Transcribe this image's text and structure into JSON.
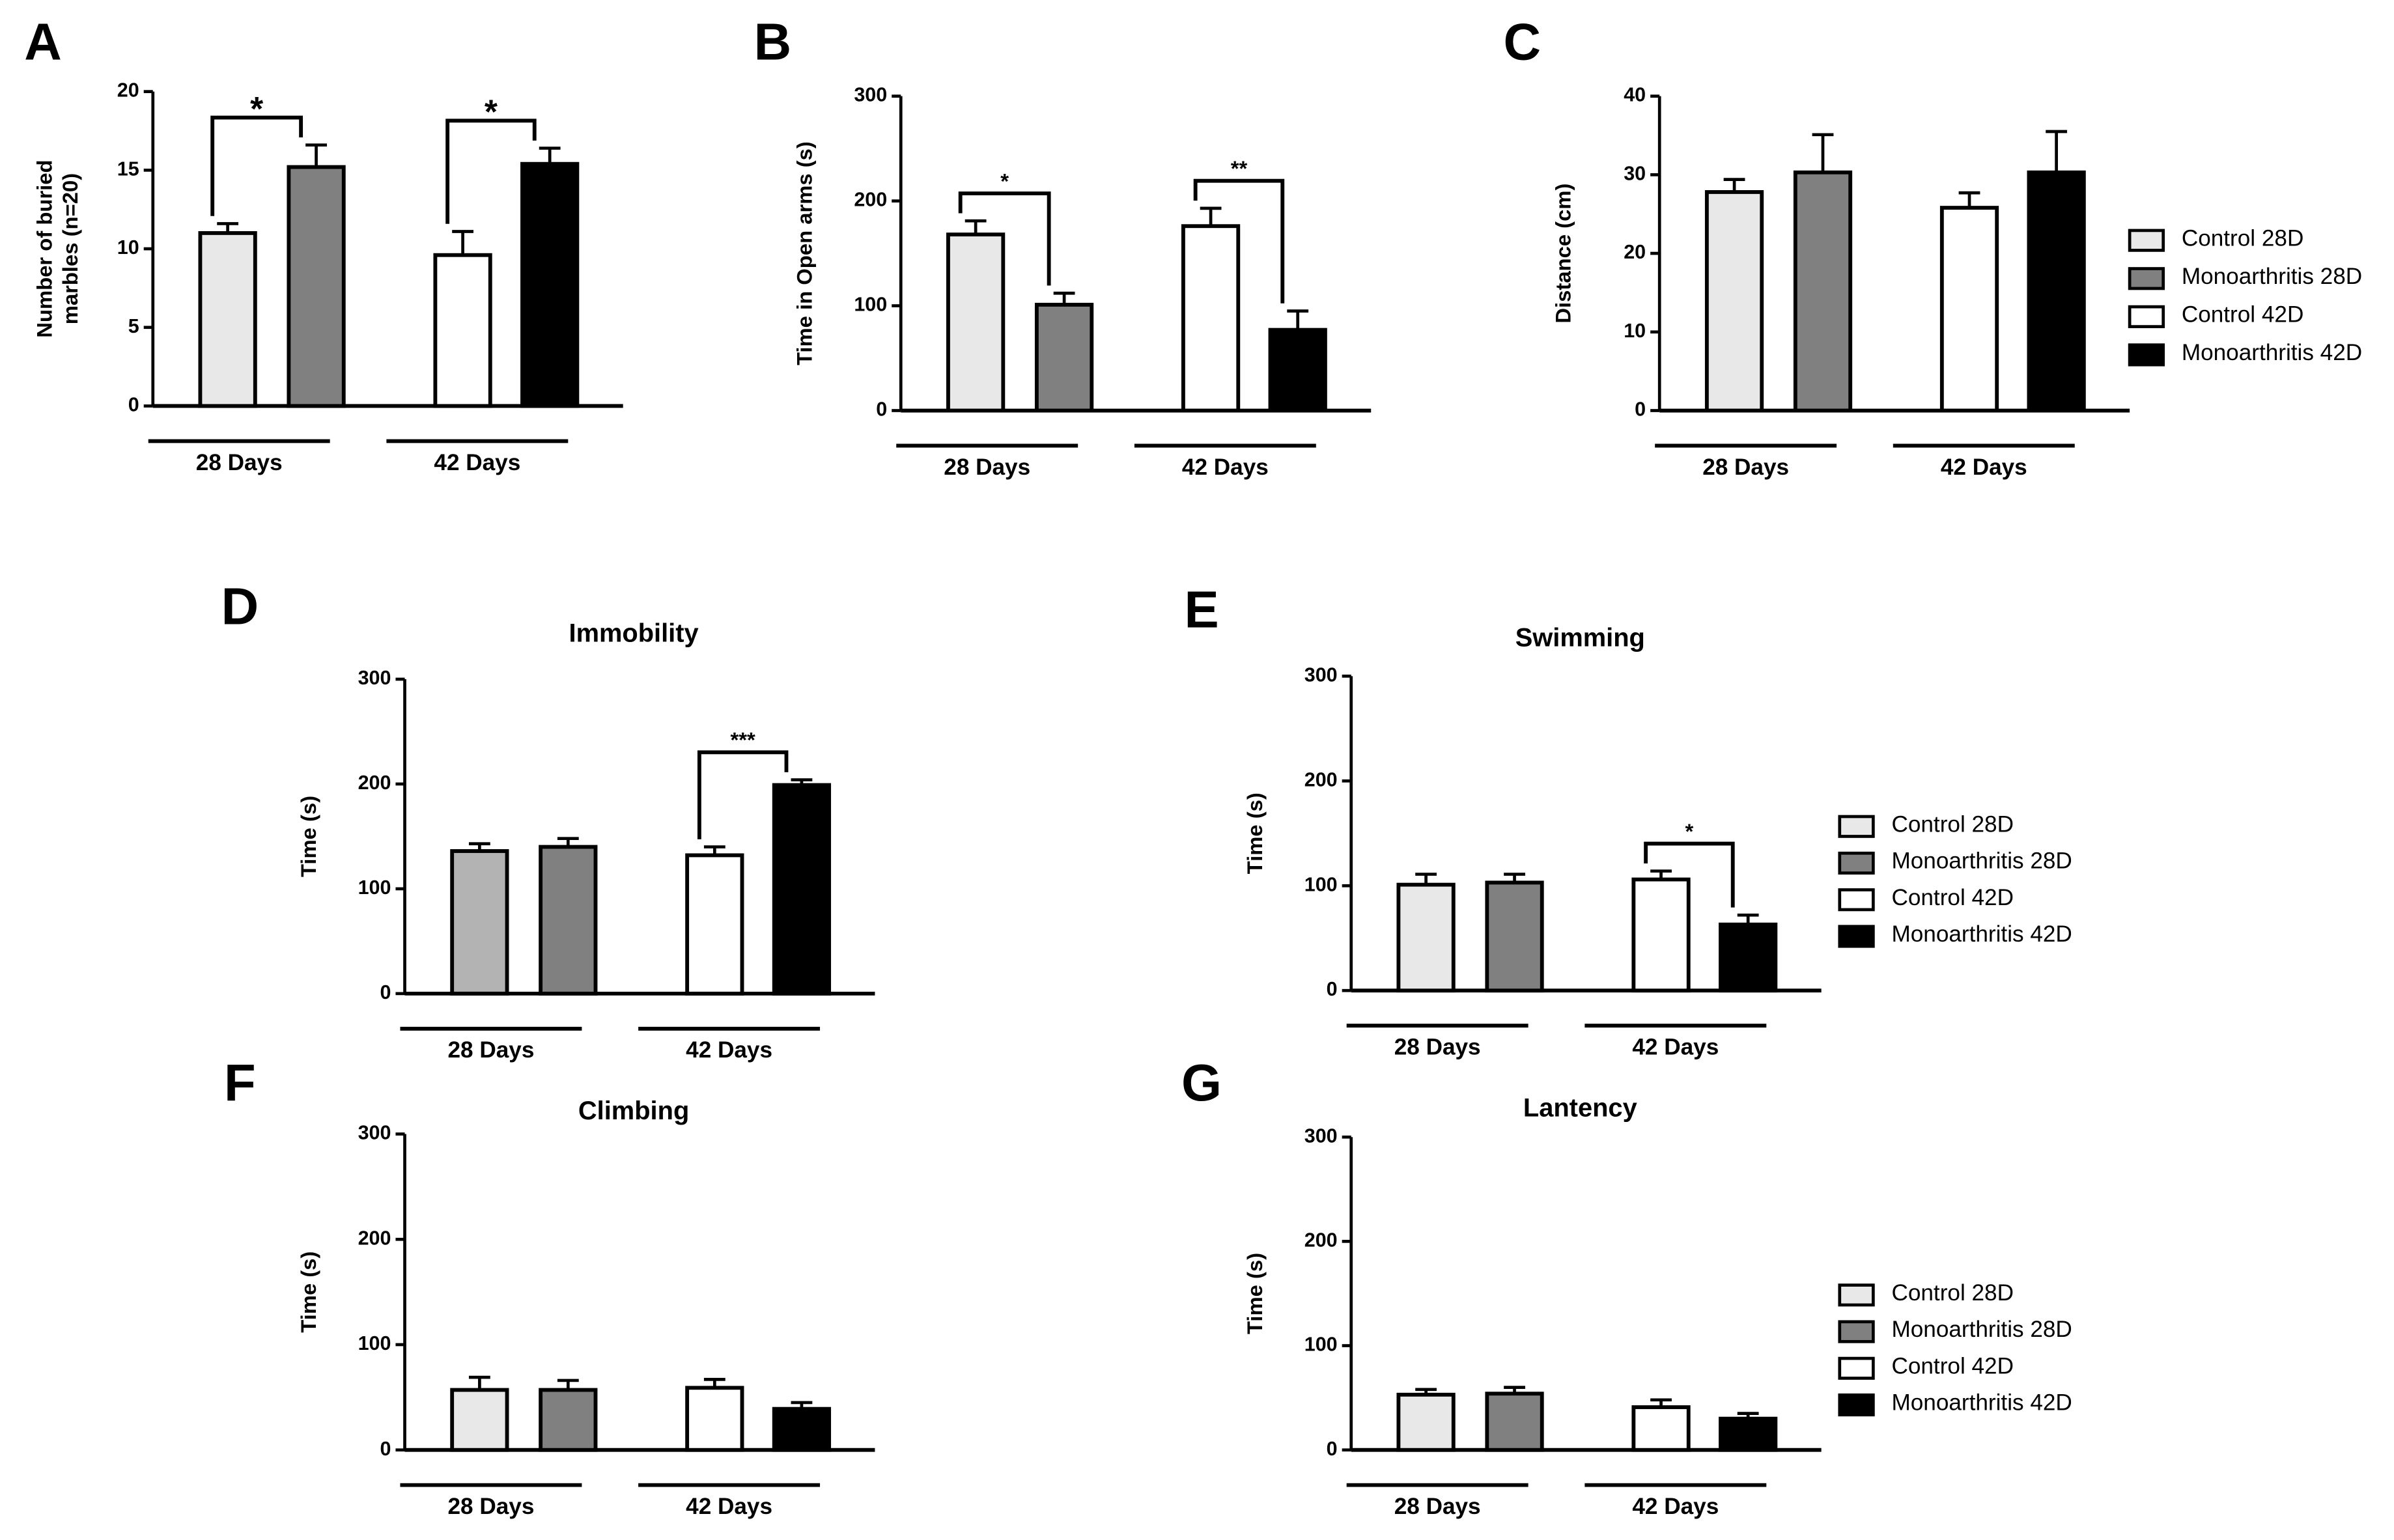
{
  "chart_data": [
    {
      "type": "bar",
      "panel": "A",
      "y_label": [
        "Number of buried",
        "marbles (n=20)"
      ],
      "groups": [
        "28 Days",
        "42 Days"
      ],
      "values": [
        11,
        15.2,
        9.6,
        15.4
      ],
      "errors": [
        0.6,
        1.4,
        1.5,
        1.0
      ],
      "colors": [
        "#e8e8e8",
        "#808080",
        "#ffffff",
        "#000000"
      ],
      "ylim": [
        0,
        20
      ],
      "yticks": [
        0,
        5,
        10,
        15,
        20
      ],
      "annotations": [
        "*",
        "*"
      ]
    },
    {
      "type": "bar",
      "panel": "B",
      "y_label": [
        "Time in Open arms (s)"
      ],
      "groups": [
        "28 Days",
        "42 Days"
      ],
      "values": [
        168,
        101,
        176,
        77
      ],
      "errors": [
        13,
        11,
        17,
        18
      ],
      "colors": [
        "#e8e8e8",
        "#808080",
        "#ffffff",
        "#000000"
      ],
      "ylim": [
        0,
        300
      ],
      "yticks": [
        0,
        100,
        200,
        300
      ],
      "annotations": [
        "*",
        "**"
      ]
    },
    {
      "type": "bar",
      "panel": "C",
      "y_label": [
        "Distance (cm)"
      ],
      "groups": [
        "28 Days",
        "42 Days"
      ],
      "values": [
        27.8,
        30.3,
        25.8,
        30.3
      ],
      "errors": [
        1.6,
        4.8,
        1.9,
        5.2
      ],
      "colors": [
        "#e8e8e8",
        "#808080",
        "#ffffff",
        "#000000"
      ],
      "ylim": [
        0,
        40
      ],
      "yticks": [
        0,
        10,
        20,
        30,
        40
      ],
      "annotations": [],
      "legend": [
        "Control 28D",
        "Monoarthritis 28D",
        "Control 42D",
        "Monoarthritis 42D"
      ]
    },
    {
      "type": "bar",
      "panel": "D",
      "title": "Immobility",
      "y_label": [
        "Time (s)"
      ],
      "groups": [
        "28 Days",
        "42 Days"
      ],
      "values": [
        136,
        140,
        132,
        199
      ],
      "errors": [
        7,
        8,
        8,
        5
      ],
      "colors": [
        "#b3b3b3",
        "#808080",
        "#ffffff",
        "#000000"
      ],
      "ylim": [
        0,
        300
      ],
      "yticks": [
        0,
        100,
        200,
        300
      ],
      "annotations": [
        "***"
      ]
    },
    {
      "type": "bar",
      "panel": "E",
      "title": "Swimming",
      "y_label": [
        "Time (s)"
      ],
      "groups": [
        "28 Days",
        "42 Days"
      ],
      "values": [
        101,
        103,
        106,
        63
      ],
      "errors": [
        10,
        8,
        8,
        9
      ],
      "colors": [
        "#e8e8e8",
        "#808080",
        "#ffffff",
        "#000000"
      ],
      "ylim": [
        0,
        300
      ],
      "yticks": [
        0,
        100,
        200,
        300
      ],
      "annotations": [
        "*"
      ],
      "legend": [
        "Control 28D",
        "Monoarthritis 28D",
        "Control 42D",
        "Monoarthritis 42D"
      ]
    },
    {
      "type": "bar",
      "panel": "F",
      "title": "Climbing",
      "y_label": [
        "Time (s)"
      ],
      "groups": [
        "28 Days",
        "42 Days"
      ],
      "values": [
        57,
        57,
        59,
        39
      ],
      "errors": [
        12,
        9,
        8,
        6
      ],
      "colors": [
        "#e8e8e8",
        "#808080",
        "#ffffff",
        "#000000"
      ],
      "ylim": [
        0,
        300
      ],
      "yticks": [
        0,
        100,
        200,
        300
      ],
      "annotations": []
    },
    {
      "type": "bar",
      "panel": "G",
      "title": "Lantency",
      "y_label": [
        "Time (s)"
      ],
      "groups": [
        "28 Days",
        "42 Days"
      ],
      "values": [
        53,
        54,
        41,
        30
      ],
      "errors": [
        5,
        6,
        7,
        5
      ],
      "colors": [
        "#e8e8e8",
        "#808080",
        "#ffffff",
        "#000000"
      ],
      "ylim": [
        0,
        300
      ],
      "yticks": [
        0,
        100,
        200,
        300
      ],
      "annotations": [],
      "legend": [
        "Control 28D",
        "Monoarthritis 28D",
        "Control 42D",
        "Monoarthritis 42D"
      ]
    }
  ]
}
